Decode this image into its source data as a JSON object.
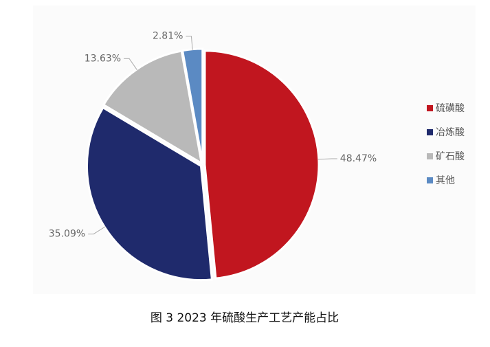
{
  "chart_data": {
    "type": "pie",
    "title": "图 3  2023 年硫酸生产工艺产能占比",
    "categories": [
      "硫磺酸",
      "冶炼酸",
      "矿石酸",
      "其他"
    ],
    "values": [
      48.47,
      35.09,
      13.63,
      2.81
    ],
    "value_labels": [
      "48.47%",
      "35.09%",
      "13.63%",
      "2.81%"
    ],
    "colors": [
      "#c1161f",
      "#1f2a6c",
      "#b9b9b9",
      "#5b8ac3"
    ],
    "legend": "right"
  }
}
